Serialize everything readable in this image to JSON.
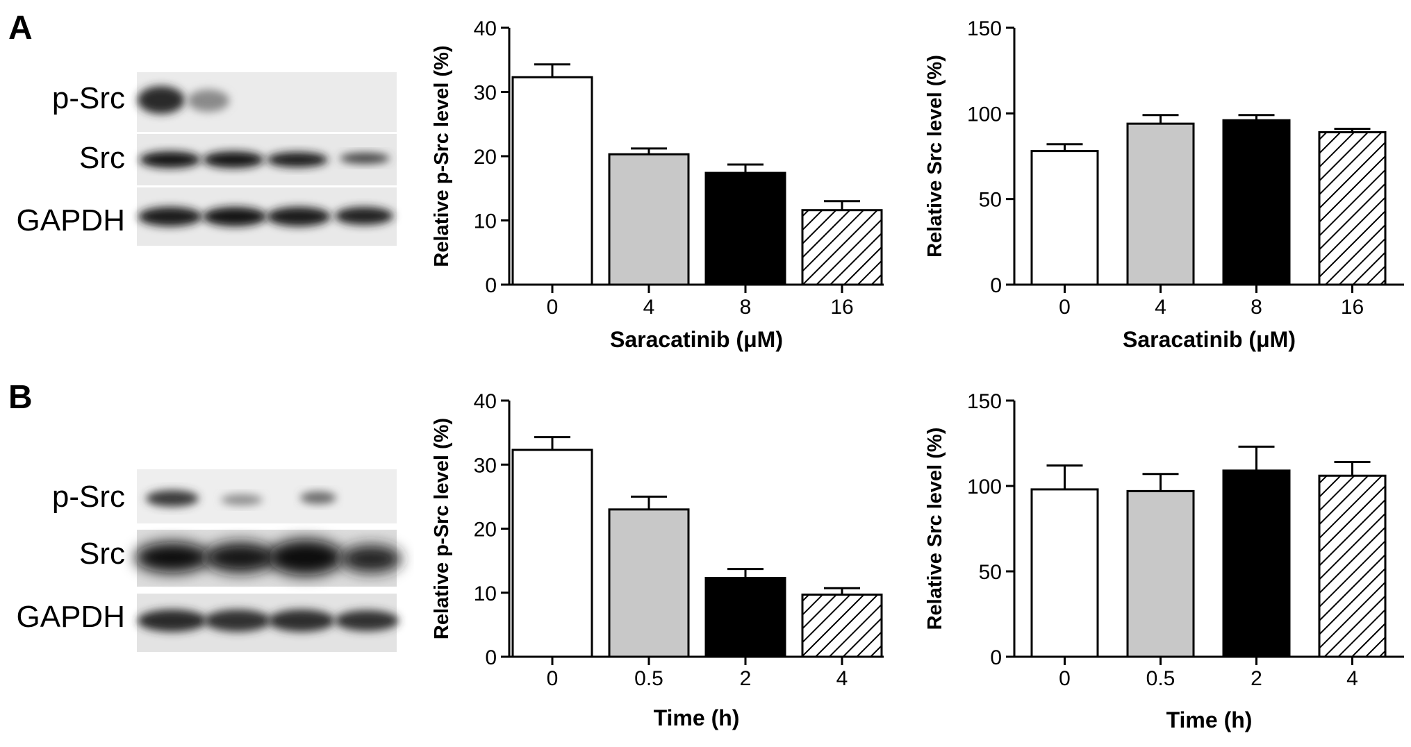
{
  "panels": [
    {
      "letter": "A",
      "blot_labels": [
        "p-Src",
        "Src",
        "GAPDH"
      ]
    },
    {
      "letter": "B",
      "blot_labels": [
        "p-Src",
        "Src",
        "GAPDH"
      ]
    }
  ],
  "colors": {
    "bar1": "#ffffff",
    "bar2": "#c8c8c8",
    "bar3": "#000000",
    "bar4": "hatched",
    "stroke": "#000000"
  },
  "chart_data": [
    {
      "type": "bar",
      "panel": "A",
      "categories": [
        "0",
        "4",
        "8",
        "16"
      ],
      "values": [
        32.3,
        20.3,
        17.4,
        11.6
      ],
      "errors": [
        2.0,
        0.9,
        1.3,
        1.4
      ],
      "ylabel": "Relative p-Src level (%)",
      "xlabel": "Saracatinib (μM)",
      "ylim": [
        0,
        40
      ],
      "yticks": [
        "0",
        "10",
        "20",
        "30",
        "40"
      ]
    },
    {
      "type": "bar",
      "panel": "A",
      "categories": [
        "0",
        "4",
        "8",
        "16"
      ],
      "values": [
        78,
        94,
        96,
        89
      ],
      "errors": [
        4,
        5,
        3,
        2
      ],
      "ylabel": "Relative Src level (%)",
      "xlabel": "Saracatinib (μM)",
      "ylim": [
        0,
        150
      ],
      "yticks": [
        "0",
        "50",
        "100",
        "150"
      ]
    },
    {
      "type": "bar",
      "panel": "B",
      "categories": [
        "0",
        "0.5",
        "2",
        "4"
      ],
      "values": [
        32.3,
        23.0,
        12.3,
        9.7
      ],
      "errors": [
        2.0,
        2.0,
        1.4,
        1.0
      ],
      "ylabel": "Relative p-Src level (%)",
      "xlabel": "Time (h)",
      "ylim": [
        0,
        40
      ],
      "yticks": [
        "0",
        "10",
        "20",
        "30",
        "40"
      ]
    },
    {
      "type": "bar",
      "panel": "B",
      "categories": [
        "0",
        "0.5",
        "2",
        "4"
      ],
      "values": [
        98,
        97,
        109,
        106
      ],
      "errors": [
        14,
        10,
        14,
        8
      ],
      "ylabel": "Relative Src level (%)",
      "xlabel": "Time (h)",
      "ylim": [
        0,
        150
      ],
      "yticks": [
        "0",
        "50",
        "100",
        "150"
      ]
    }
  ]
}
